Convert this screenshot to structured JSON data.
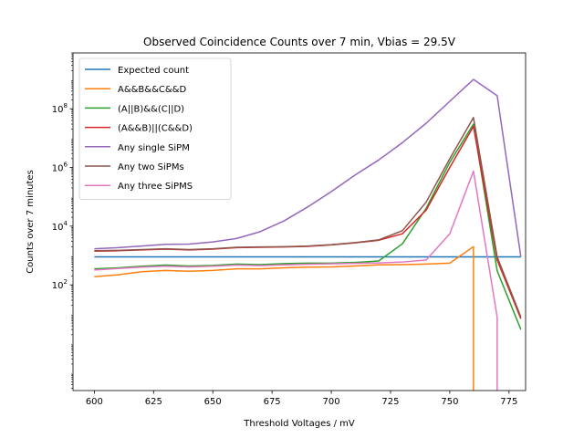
{
  "chart_data": {
    "type": "line",
    "title": "Observed Coincidence Counts over 7 min, Vbias = 29.5V",
    "xlabel": "Threshold Voltages / mV",
    "ylabel": "Counts over 7 minutes",
    "xlim": [
      591,
      782
    ],
    "ylim": [
      0.025,
      8000000000
    ],
    "yscale": "log",
    "x_ticks": [
      {
        "value": 600,
        "label": "600"
      },
      {
        "value": 625,
        "label": "625"
      },
      {
        "value": 650,
        "label": "650"
      },
      {
        "value": 675,
        "label": "675"
      },
      {
        "value": 700,
        "label": "700"
      },
      {
        "value": 725,
        "label": "725"
      },
      {
        "value": 750,
        "label": "750"
      },
      {
        "value": 775,
        "label": "775"
      }
    ],
    "y_ticks": [
      {
        "value": 100,
        "base": "10",
        "exp": "2"
      },
      {
        "value": 10000,
        "base": "10",
        "exp": "4"
      },
      {
        "value": 1000000,
        "base": "10",
        "exp": "6"
      },
      {
        "value": 100000000,
        "base": "10",
        "exp": "8"
      }
    ],
    "grid": false,
    "legend_position": "top-left",
    "series": [
      {
        "name": "Expected count",
        "color": "#1f77b4",
        "x": [
          600,
          610,
          620,
          630,
          640,
          650,
          660,
          670,
          680,
          690,
          700,
          710,
          720,
          730,
          740,
          750,
          760,
          770,
          780
        ],
        "y": [
          900,
          900,
          900,
          900,
          900,
          900,
          900,
          900,
          900,
          900,
          900,
          900,
          900,
          900,
          900,
          900,
          900,
          900,
          900
        ]
      },
      {
        "name": "A&&B&&C&&D",
        "color": "#ff7f0e",
        "x": [
          600,
          610,
          620,
          630,
          640,
          650,
          660,
          670,
          680,
          690,
          700,
          710,
          720,
          730,
          740,
          750,
          760,
          760
        ],
        "y": [
          190,
          220,
          280,
          310,
          290,
          310,
          350,
          350,
          380,
          400,
          410,
          440,
          480,
          490,
          510,
          550,
          2000,
          0.001
        ]
      },
      {
        "name": "(A||B)&&(C||D)",
        "color": "#2ca02c",
        "x": [
          600,
          610,
          620,
          630,
          640,
          650,
          660,
          670,
          680,
          690,
          700,
          710,
          720,
          730,
          740,
          750,
          760,
          770,
          780
        ],
        "y": [
          350,
          380,
          430,
          470,
          440,
          460,
          510,
          490,
          530,
          550,
          550,
          580,
          650,
          2500,
          40000,
          1500000,
          30000000,
          300,
          3
        ]
      },
      {
        "name": "(A&&B)||(C&&D)",
        "color": "#d62728",
        "x": [
          600,
          610,
          620,
          630,
          640,
          650,
          660,
          670,
          680,
          690,
          700,
          710,
          720,
          730,
          740,
          750,
          760,
          770,
          780
        ],
        "y": [
          1400,
          1450,
          1550,
          1650,
          1550,
          1650,
          1850,
          1900,
          1950,
          2050,
          2300,
          2700,
          3300,
          5500,
          35000,
          1000000,
          25000000,
          700,
          7
        ]
      },
      {
        "name": "Any single SiPM",
        "color": "#9467bd",
        "x": [
          600,
          610,
          620,
          630,
          640,
          650,
          660,
          670,
          680,
          690,
          700,
          710,
          720,
          730,
          740,
          750,
          760,
          770,
          780
        ],
        "y": [
          1700,
          1850,
          2100,
          2400,
          2450,
          2900,
          3800,
          6500,
          15000,
          45000,
          150000,
          550000,
          1800000,
          7000000,
          32000000,
          180000000,
          1000000000,
          280000000,
          900
        ]
      },
      {
        "name": "Any two SiPMs",
        "color": "#8c564b",
        "x": [
          600,
          610,
          620,
          630,
          640,
          650,
          660,
          670,
          680,
          690,
          700,
          710,
          720,
          730,
          740,
          750,
          760,
          770,
          780
        ],
        "y": [
          1450,
          1500,
          1600,
          1700,
          1600,
          1700,
          1900,
          1950,
          2000,
          2100,
          2350,
          2750,
          3400,
          7000,
          65000,
          2000000,
          50000000,
          900,
          8
        ]
      },
      {
        "name": "Any three SiPMS",
        "color": "#e377c2",
        "x": [
          600,
          610,
          620,
          630,
          640,
          650,
          660,
          670,
          680,
          690,
          700,
          710,
          720,
          730,
          740,
          750,
          760,
          770,
          770
        ],
        "y": [
          320,
          360,
          400,
          430,
          410,
          430,
          470,
          450,
          480,
          500,
          520,
          540,
          560,
          600,
          700,
          5500,
          750000,
          8,
          0.001
        ]
      }
    ]
  }
}
